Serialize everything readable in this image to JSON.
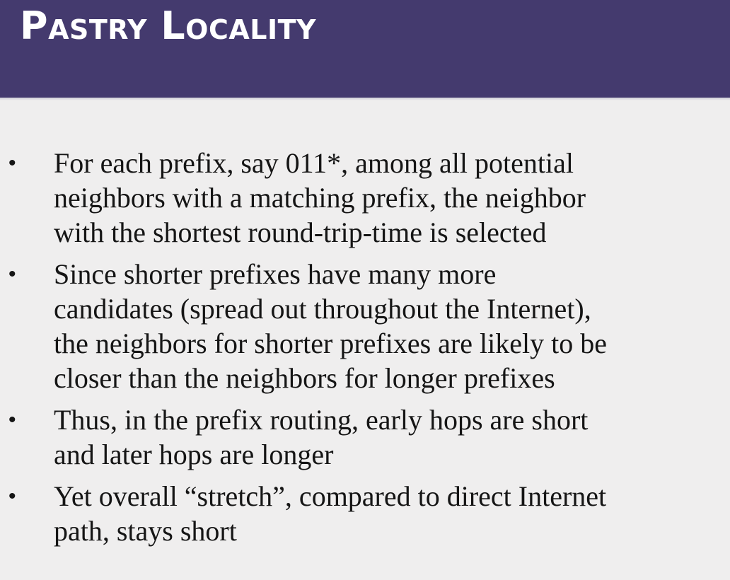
{
  "slide": {
    "title": "Pastry Locality",
    "bullets": [
      {
        "lines": [
          "For each prefix, say 011*, among all potential",
          "neighbors with a matching prefix, the neighbor",
          "with the shortest round-trip-time is selected"
        ]
      },
      {
        "lines": [
          "Since shorter prefixes have many more",
          "candidates (spread out throughout the Internet),",
          "the neighbors for shorter prefixes are likely to be",
          "closer than the neighbors for longer prefixes"
        ]
      },
      {
        "lines": [
          "Thus, in the prefix routing, early hops are short",
          "and later hops are longer"
        ]
      },
      {
        "lines": [
          "Yet overall “stretch”, compared to direct Internet",
          "path, stays short"
        ]
      }
    ],
    "bullet_glyph": "•",
    "colors": {
      "header_bg": "#443a6e",
      "body_bg": "#efeeee",
      "title_text": "#ffffff",
      "body_text": "#151515"
    }
  }
}
